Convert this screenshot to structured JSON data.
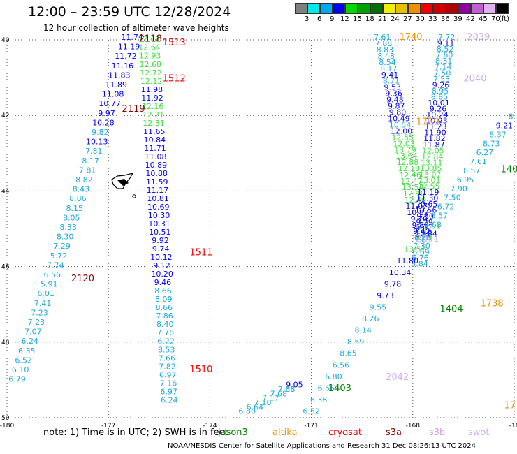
{
  "header": {
    "title": "12:00 – 23:59 UTC 12/28/2024",
    "subtitle": "12 hour collection of altimeter wave heights"
  },
  "color_scale": {
    "unit": "(ft)",
    "colors": [
      "#7f7f7f",
      "#00e8e8",
      "#00a8f0",
      "#0000f0",
      "#00d800",
      "#00a000",
      "#007000",
      "#f0f000",
      "#e8c000",
      "#f09000",
      "#f00000",
      "#d00000",
      "#b00000",
      "#9000a0",
      "#c060d0",
      "#e0b0f0",
      "#000000"
    ],
    "labels": [
      "3",
      "6",
      "9",
      "12",
      "15",
      "18",
      "21",
      "24",
      "27",
      "30",
      "33",
      "36",
      "39",
      "42",
      "45",
      "70"
    ]
  },
  "note": "note: 1) Time is in UTC; 2) SWH is in feet",
  "legend": [
    {
      "name": "jason3",
      "color": "#008000"
    },
    {
      "name": "altika",
      "color": "#f39000"
    },
    {
      "name": "cryosat",
      "color": "#ff0000"
    },
    {
      "name": "s3a",
      "color": "#8b0000"
    },
    {
      "name": "s3b",
      "color": "#c8a0e8"
    },
    {
      "name": "swot",
      "color": "#d0b0f0"
    }
  ],
  "footer": "NOAA/NESDIS Center for Satellite Applications and Research    31 Dec 08:26:13 UTC 2024",
  "chart_data": {
    "type": "scatter",
    "xlim": [
      -180,
      -165
    ],
    "ylim": [
      39,
      50
    ],
    "y_reversed": true,
    "x_ticks": [
      "-180",
      "-177",
      "-174",
      "-171",
      "-168",
      "-16"
    ],
    "y_ticks": [
      "40",
      "42",
      "44",
      "46",
      "48",
      "50"
    ],
    "grid": true,
    "time_labels": [
      {
        "x": -176.1,
        "y": 40.05,
        "text": "2118",
        "color": "#8b0000"
      },
      {
        "x": -175.4,
        "y": 40.15,
        "text": "1513",
        "color": "#ff0000"
      },
      {
        "x": -175.4,
        "y": 41.1,
        "text": "1512",
        "color": "#ff0000"
      },
      {
        "x": -176.6,
        "y": 41.9,
        "text": "2119",
        "color": "#8b0000"
      },
      {
        "x": -174.6,
        "y": 45.7,
        "text": "1511",
        "color": "#ff0000"
      },
      {
        "x": -178.1,
        "y": 46.4,
        "text": "2120",
        "color": "#8b0000"
      },
      {
        "x": -174.6,
        "y": 48.8,
        "text": "1510",
        "color": "#ff0000"
      },
      {
        "x": -168.4,
        "y": 40.0,
        "text": "1740",
        "color": "#f39000"
      },
      {
        "x": -166.4,
        "y": 40.0,
        "text": "2039",
        "color": "#d0b0f0"
      },
      {
        "x": -166.5,
        "y": 41.1,
        "text": "2040",
        "color": "#d0b0f0"
      },
      {
        "x": -167.9,
        "y": 42.25,
        "text": "1739",
        "color": "#f39000"
      },
      {
        "x": -167.9,
        "y": 45.35,
        "text": "2041",
        "color": "#d0b0f0"
      },
      {
        "x": -167.2,
        "y": 47.2,
        "text": "1404",
        "color": "#008000"
      },
      {
        "x": -166.0,
        "y": 47.05,
        "text": "1738",
        "color": "#f39000"
      },
      {
        "x": -168.8,
        "y": 49.0,
        "text": "2042",
        "color": "#d0b0f0"
      },
      {
        "x": -170.5,
        "y": 49.3,
        "text": "1403",
        "color": "#008000"
      },
      {
        "x": -165.4,
        "y": 43.5,
        "text": "140",
        "color": "#008000"
      },
      {
        "x": -165.3,
        "y": 49.75,
        "text": "17",
        "color": "#f39000"
      }
    ],
    "tracks": [
      {
        "name": "s3a-west",
        "start": [
          -176.3,
          40.0
        ],
        "end": [
          -179.7,
          49.05
        ],
        "values": [
          "11.74",
          "11.19",
          "11.72",
          "11.16",
          "11.83",
          "11.89",
          "11.08",
          "10.77",
          "9.97",
          "10.28",
          "9.82",
          "10.13",
          "7.81",
          "8.17",
          "7.81",
          "8.82",
          "8.43",
          "8.86",
          "8.15",
          "8.05",
          "8.33",
          "8.30",
          "7.29",
          "5.72",
          "7.74",
          "6.56",
          "5.91",
          "6.01",
          "7.41",
          "7.23",
          "7.23",
          "7.07",
          "6.24",
          "6.35",
          "6.52",
          "6.10",
          "6.79"
        ],
        "colors": [
          "#0000ff",
          "#0000ff",
          "#0000ff",
          "#0000ff",
          "#0000ff",
          "#0000ff",
          "#0000ff",
          "#0000ff",
          "#0000ff",
          "#0000ff",
          "#1ca8e0",
          "#0000ff",
          "#1ca8e0",
          "#1ca8e0",
          "#1ca8e0",
          "#1ca8e0",
          "#1ca8e0",
          "#1ca8e0",
          "#1ca8e0",
          "#1ca8e0",
          "#1ca8e0",
          "#1ca8e0",
          "#1ca8e0",
          "#1ca8e0",
          "#1ca8e0",
          "#1ca8e0",
          "#1ca8e0",
          "#1ca8e0",
          "#1ca8e0",
          "#1ca8e0",
          "#1ca8e0",
          "#1ca8e0",
          "#1ca8e0",
          "#1ca8e0",
          "#1ca8e0",
          "#1ca8e0",
          "#1ca8e0"
        ]
      },
      {
        "name": "cryosat",
        "start": [
          -175.8,
          40.05
        ],
        "end": [
          -175.2,
          49.6
        ],
        "values": [
          "12.42",
          "12.64",
          "12.93",
          "12.68",
          "12.72",
          "12.12",
          "11.98",
          "11.92",
          "12.16",
          "12.21",
          "12.31",
          "11.65",
          "10.84",
          "11.71",
          "11.08",
          "10.89",
          "10.88",
          "11.59",
          "11.17",
          "10.81",
          "10.69",
          "10.30",
          "10.31",
          "10.51",
          "9.92",
          "9.74",
          "10.12",
          "9.12",
          "10.20",
          "9.46",
          "8.66",
          "8.09",
          "8.66",
          "7.86",
          "8.40",
          "7.76",
          "6.22",
          "8.53",
          "7.66",
          "7.82",
          "6.97",
          "7.16",
          "6.97",
          "6.24"
        ],
        "colors": [
          "#44dd44",
          "#44dd44",
          "#44dd44",
          "#44dd44",
          "#44dd44",
          "#44dd44",
          "#0000ff",
          "#0000ff",
          "#44dd44",
          "#44dd44",
          "#44dd44",
          "#0000ff",
          "#0000ff",
          "#0000ff",
          "#0000ff",
          "#0000ff",
          "#0000ff",
          "#0000ff",
          "#0000ff",
          "#0000ff",
          "#0000ff",
          "#0000ff",
          "#0000ff",
          "#0000ff",
          "#0000ff",
          "#0000ff",
          "#0000ff",
          "#0000ff",
          "#0000ff",
          "#0000ff",
          "#1ca8e0",
          "#1ca8e0",
          "#1ca8e0",
          "#1ca8e0",
          "#1ca8e0",
          "#1ca8e0",
          "#1ca8e0",
          "#1ca8e0",
          "#1ca8e0",
          "#1ca8e0",
          "#1ca8e0",
          "#1ca8e0",
          "#1ca8e0",
          "#1ca8e0"
        ]
      },
      {
        "name": "altika-1740",
        "start": [
          -168.9,
          40.0
        ],
        "end": [
          -167.7,
          45.3
        ],
        "values": [
          "7.61",
          "7.88",
          "8.83",
          "8.48",
          "8.54",
          "8.17",
          "9.41",
          "8.71",
          "9.53",
          "9.36",
          "9.48",
          "9.87",
          "9.80",
          "10.49",
          "10.54",
          "12.00",
          "12.55",
          "12.03",
          "13.79",
          "13.64",
          "12.88",
          "12.18",
          "12.46",
          "12.47",
          "13.54",
          "12.96",
          "12.49",
          "11.07",
          "10.82",
          "9.70",
          "9.89",
          "9.42",
          "8.20"
        ],
        "colors": [
          "#1ca8e0",
          "#1ca8e0",
          "#1ca8e0",
          "#1ca8e0",
          "#1ca8e0",
          "#1ca8e0",
          "#0000ff",
          "#1ca8e0",
          "#0000ff",
          "#0000ff",
          "#0000ff",
          "#0000ff",
          "#0000ff",
          "#0000ff",
          "#1ca8e0",
          "#0000ff",
          "#44dd44",
          "#44dd44",
          "#44dd44",
          "#44dd44",
          "#44dd44",
          "#44dd44",
          "#44dd44",
          "#44dd44",
          "#44dd44",
          "#44dd44",
          "#44dd44",
          "#0000ff",
          "#0000ff",
          "#0000ff",
          "#0000ff",
          "#0000ff",
          "#1ca8e0"
        ]
      },
      {
        "name": "swot-2039",
        "start": [
          -167.0,
          40.0
        ],
        "end": [
          -167.8,
          46.0
        ],
        "values": [
          "7.72",
          "9.11",
          "8.52",
          "7.60",
          "8.31",
          "7.14",
          "7.50",
          "7.53",
          "9.26",
          "8.95",
          "8.85",
          "10.01",
          "9.26",
          "10.24",
          "10.93",
          "11.23",
          "11.90",
          "11.82",
          "11.87",
          "12.05",
          "12.84",
          "13.11",
          "13.85",
          "13.07",
          "13.01",
          "12.55",
          "11.19",
          "11.30",
          "10.65",
          "10.56",
          "9.60",
          "9.29",
          "9.01",
          "7.69",
          "7.65",
          "7.30",
          "6.69",
          "6.76",
          "5.84"
        ],
        "colors": [
          "#1ca8e0",
          "#0000ff",
          "#1ca8e0",
          "#1ca8e0",
          "#1ca8e0",
          "#1ca8e0",
          "#1ca8e0",
          "#1ca8e0",
          "#0000ff",
          "#1ca8e0",
          "#1ca8e0",
          "#0000ff",
          "#0000ff",
          "#0000ff",
          "#0000ff",
          "#0000ff",
          "#0000ff",
          "#0000ff",
          "#0000ff",
          "#44dd44",
          "#44dd44",
          "#44dd44",
          "#44dd44",
          "#44dd44",
          "#44dd44",
          "#44dd44",
          "#0000ff",
          "#0000ff",
          "#0000ff",
          "#0000ff",
          "#0000ff",
          "#0000ff",
          "#0000ff",
          "#1ca8e0",
          "#1ca8e0",
          "#1ca8e0",
          "#1ca8e0",
          "#1ca8e0",
          "#1ca8e0"
        ]
      },
      {
        "name": "jason3-1404",
        "start": [
          -167.5,
          45.0
        ],
        "end": [
          -171.0,
          49.9
        ],
        "values": [
          "12.01",
          "11.31",
          "13.57",
          "11.80",
          "10.34",
          "9.78",
          "9.73",
          "9.55",
          "8.26",
          "8.14",
          "8.59",
          "8.65",
          "6.56",
          "6.80",
          "6.66",
          "6.38",
          "6.52"
        ],
        "colors": [
          "#44dd44",
          "#44dd44",
          "#44dd44",
          "#0000ff",
          "#0000ff",
          "#0000ff",
          "#0000ff",
          "#1ca8e0",
          "#1ca8e0",
          "#1ca8e0",
          "#1ca8e0",
          "#1ca8e0",
          "#1ca8e0",
          "#1ca8e0",
          "#1ca8e0",
          "#1ca8e0",
          "#1ca8e0"
        ]
      },
      {
        "name": "jason3-1403",
        "start": [
          -171.5,
          49.2
        ],
        "end": [
          -172.9,
          49.9
        ],
        "values": [
          "9.05",
          "7.88",
          "7.68",
          "7.17",
          "7.10",
          "6.64",
          "6.80"
        ],
        "colors": [
          "#0000ff",
          "#1ca8e0",
          "#1ca8e0",
          "#1ca8e0",
          "#1ca8e0",
          "#1ca8e0",
          "#1ca8e0"
        ]
      },
      {
        "name": "s3b-east",
        "start": [
          -165.1,
          42.1
        ],
        "end": [
          -167.6,
          45.2
        ],
        "values": [
          "8",
          "9.21",
          "8.37",
          "8.73",
          "6.27",
          "7.61",
          "8.57",
          "6.95",
          "7.90",
          "7.50",
          "6.72",
          "6.57",
          "6.68",
          "10.84"
        ],
        "colors": [
          "#1ca8e0",
          "#0000ff",
          "#1ca8e0",
          "#1ca8e0",
          "#1ca8e0",
          "#1ca8e0",
          "#1ca8e0",
          "#1ca8e0",
          "#1ca8e0",
          "#1ca8e0",
          "#1ca8e0",
          "#1ca8e0",
          "#1ca8e0",
          "#0000ff"
        ]
      }
    ]
  }
}
